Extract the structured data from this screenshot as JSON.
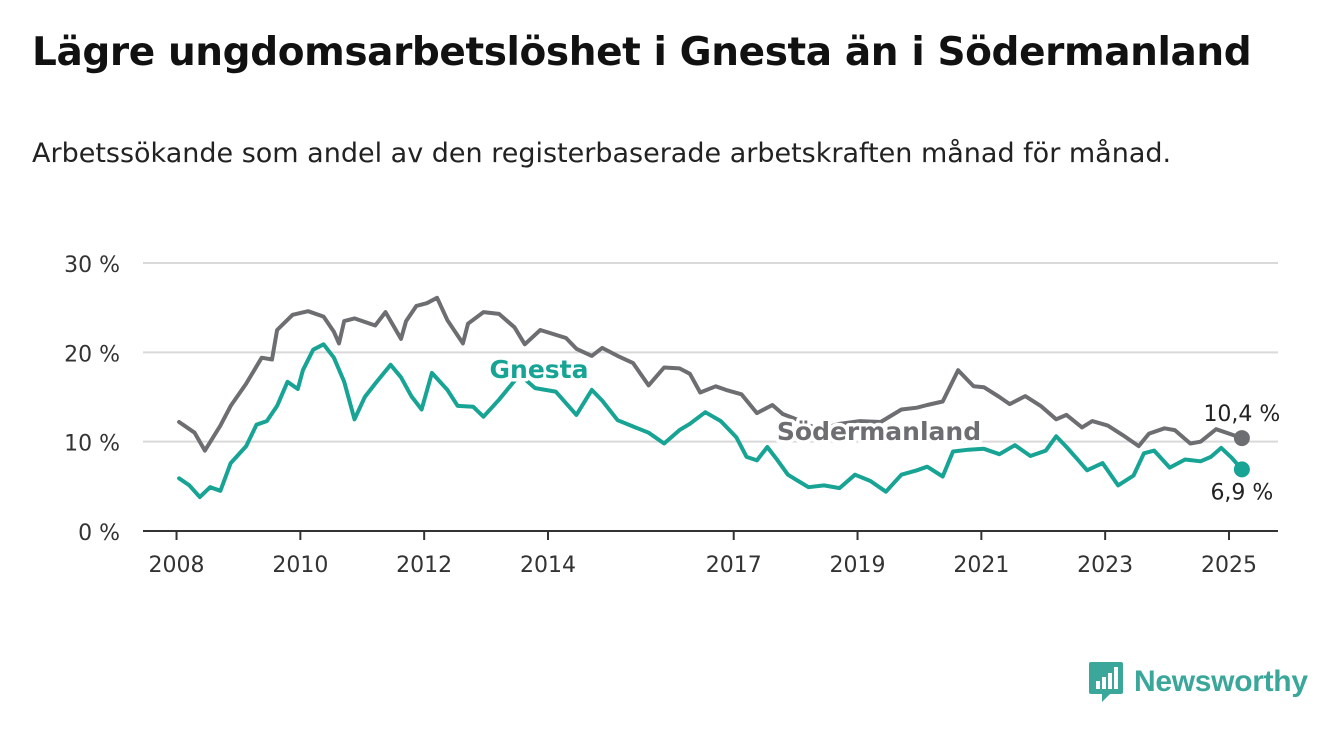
{
  "header": {
    "title": "Lägre ungdomsarbetslöshet i Gnesta än i Södermanland",
    "subtitle": "Arbetssökande som andel av den registerbaserade arbetskraften månad för månad."
  },
  "brand": {
    "name": "Newsworthy",
    "icon": "bar-chart-icon",
    "color": "#3aa79a"
  },
  "chart_data": {
    "type": "line",
    "title": "Lägre ungdomsarbetslöshet i Gnesta än i Södermanland",
    "subtitle": "Arbetssökande som andel av den registerbaserade arbetskraften månad för månad.",
    "xlabel": "",
    "ylabel": "",
    "x_tick_labels": [
      "2008",
      "2010",
      "2012",
      "2014",
      "2017",
      "2019",
      "2021",
      "2023",
      "2025"
    ],
    "y_tick_labels": [
      "0 %",
      "10 %",
      "20 %",
      "30 %"
    ],
    "y_ticks": [
      0,
      10,
      20,
      30
    ],
    "ylim": [
      0,
      30
    ],
    "xlim": [
      "2007-06",
      "2025-10"
    ],
    "grid": true,
    "legend": "inline labels",
    "series": [
      {
        "name": "Södermanland",
        "color": "#6d6e71",
        "end_label": "10,4 %",
        "points": [
          [
            "2008-01",
            12.2
          ],
          [
            "2008-04",
            11.0
          ],
          [
            "2008-06",
            9.0
          ],
          [
            "2008-09",
            11.8
          ],
          [
            "2008-11",
            14.0
          ],
          [
            "2009-02",
            16.5
          ],
          [
            "2009-05",
            19.4
          ],
          [
            "2009-07",
            19.2
          ],
          [
            "2009-08",
            22.5
          ],
          [
            "2009-11",
            24.2
          ],
          [
            "2010-02",
            24.6
          ],
          [
            "2010-05",
            24.0
          ],
          [
            "2010-07",
            22.3
          ],
          [
            "2010-08",
            21.0
          ],
          [
            "2010-09",
            23.5
          ],
          [
            "2010-11",
            23.8
          ],
          [
            "2011-03",
            23.0
          ],
          [
            "2011-05",
            24.5
          ],
          [
            "2011-08",
            21.5
          ],
          [
            "2011-09",
            23.5
          ],
          [
            "2011-11",
            25.2
          ],
          [
            "2012-01",
            25.5
          ],
          [
            "2012-03",
            26.1
          ],
          [
            "2012-05",
            23.6
          ],
          [
            "2012-08",
            21.0
          ],
          [
            "2012-09",
            23.2
          ],
          [
            "2012-12",
            24.5
          ],
          [
            "2013-03",
            24.3
          ],
          [
            "2013-06",
            22.8
          ],
          [
            "2013-08",
            20.9
          ],
          [
            "2013-11",
            22.5
          ],
          [
            "2014-04",
            21.6
          ],
          [
            "2014-06",
            20.4
          ],
          [
            "2014-09",
            19.6
          ],
          [
            "2014-11",
            20.5
          ],
          [
            "2015-02",
            19.6
          ],
          [
            "2015-05",
            18.8
          ],
          [
            "2015-08",
            16.3
          ],
          [
            "2015-11",
            18.3
          ],
          [
            "2016-02",
            18.2
          ],
          [
            "2016-04",
            17.6
          ],
          [
            "2016-06",
            15.5
          ],
          [
            "2016-09",
            16.2
          ],
          [
            "2016-11",
            15.8
          ],
          [
            "2017-02",
            15.3
          ],
          [
            "2017-05",
            13.2
          ],
          [
            "2017-08",
            14.1
          ],
          [
            "2017-10",
            13.1
          ],
          [
            "2018-02",
            12.2
          ],
          [
            "2018-05",
            11.3
          ],
          [
            "2018-09",
            12.0
          ],
          [
            "2019-01",
            12.3
          ],
          [
            "2019-05",
            12.2
          ],
          [
            "2019-09",
            13.6
          ],
          [
            "2019-12",
            13.8
          ],
          [
            "2020-02",
            14.1
          ],
          [
            "2020-05",
            14.5
          ],
          [
            "2020-08",
            18.0
          ],
          [
            "2020-11",
            16.2
          ],
          [
            "2021-01",
            16.1
          ],
          [
            "2021-04",
            15.0
          ],
          [
            "2021-06",
            14.2
          ],
          [
            "2021-09",
            15.1
          ],
          [
            "2021-12",
            14.0
          ],
          [
            "2022-03",
            12.5
          ],
          [
            "2022-05",
            13.0
          ],
          [
            "2022-08",
            11.6
          ],
          [
            "2022-10",
            12.3
          ],
          [
            "2023-01",
            11.8
          ],
          [
            "2023-04",
            10.7
          ],
          [
            "2023-07",
            9.5
          ],
          [
            "2023-09",
            10.9
          ],
          [
            "2023-12",
            11.5
          ],
          [
            "2024-02",
            11.3
          ],
          [
            "2024-05",
            9.8
          ],
          [
            "2024-07",
            10.0
          ],
          [
            "2024-10",
            11.4
          ],
          [
            "2025-01",
            10.8
          ],
          [
            "2025-03",
            10.4
          ]
        ]
      },
      {
        "name": "Gnesta",
        "color": "#17a495",
        "end_label": "6,9 %",
        "points": [
          [
            "2008-01",
            5.9
          ],
          [
            "2008-03",
            5.1
          ],
          [
            "2008-05",
            3.8
          ],
          [
            "2008-07",
            4.9
          ],
          [
            "2008-09",
            4.5
          ],
          [
            "2008-11",
            7.6
          ],
          [
            "2009-02",
            9.5
          ],
          [
            "2009-04",
            11.9
          ],
          [
            "2009-06",
            12.3
          ],
          [
            "2009-08",
            14.0
          ],
          [
            "2009-10",
            16.7
          ],
          [
            "2009-12",
            15.9
          ],
          [
            "2010-01",
            18.0
          ],
          [
            "2010-03",
            20.3
          ],
          [
            "2010-05",
            20.9
          ],
          [
            "2010-07",
            19.4
          ],
          [
            "2010-09",
            16.7
          ],
          [
            "2010-11",
            12.5
          ],
          [
            "2011-01",
            15.0
          ],
          [
            "2011-03",
            16.5
          ],
          [
            "2011-06",
            18.6
          ],
          [
            "2011-08",
            17.2
          ],
          [
            "2011-10",
            15.1
          ],
          [
            "2011-12",
            13.6
          ],
          [
            "2012-02",
            17.7
          ],
          [
            "2012-05",
            15.8
          ],
          [
            "2012-07",
            14.0
          ],
          [
            "2012-10",
            13.9
          ],
          [
            "2012-12",
            12.8
          ],
          [
            "2013-03",
            14.7
          ],
          [
            "2013-07",
            17.5
          ],
          [
            "2013-10",
            16.0
          ],
          [
            "2014-02",
            15.6
          ],
          [
            "2014-06",
            13.0
          ],
          [
            "2014-09",
            15.8
          ],
          [
            "2014-11",
            14.6
          ],
          [
            "2015-02",
            12.4
          ],
          [
            "2015-05",
            11.7
          ],
          [
            "2015-08",
            11.0
          ],
          [
            "2015-11",
            9.8
          ],
          [
            "2016-02",
            11.3
          ],
          [
            "2016-04",
            12.0
          ],
          [
            "2016-07",
            13.3
          ],
          [
            "2016-10",
            12.3
          ],
          [
            "2017-01",
            10.5
          ],
          [
            "2017-03",
            8.3
          ],
          [
            "2017-05",
            7.9
          ],
          [
            "2017-07",
            9.4
          ],
          [
            "2017-09",
            7.9
          ],
          [
            "2017-11",
            6.3
          ],
          [
            "2018-01",
            5.6
          ],
          [
            "2018-03",
            4.9
          ],
          [
            "2018-06",
            5.1
          ],
          [
            "2018-09",
            4.8
          ],
          [
            "2018-12",
            6.3
          ],
          [
            "2019-03",
            5.6
          ],
          [
            "2019-06",
            4.4
          ],
          [
            "2019-09",
            6.3
          ],
          [
            "2019-12",
            6.8
          ],
          [
            "2020-02",
            7.2
          ],
          [
            "2020-05",
            6.1
          ],
          [
            "2020-07",
            8.9
          ],
          [
            "2020-10",
            9.1
          ],
          [
            "2021-01",
            9.2
          ],
          [
            "2021-04",
            8.6
          ],
          [
            "2021-07",
            9.6
          ],
          [
            "2021-10",
            8.4
          ],
          [
            "2022-01",
            9.0
          ],
          [
            "2022-03",
            10.6
          ],
          [
            "2022-05",
            9.4
          ],
          [
            "2022-07",
            8.1
          ],
          [
            "2022-09",
            6.8
          ],
          [
            "2022-12",
            7.6
          ],
          [
            "2023-03",
            5.1
          ],
          [
            "2023-06",
            6.2
          ],
          [
            "2023-08",
            8.7
          ],
          [
            "2023-10",
            9.0
          ],
          [
            "2024-01",
            7.1
          ],
          [
            "2024-04",
            8.0
          ],
          [
            "2024-07",
            7.8
          ],
          [
            "2024-09",
            8.3
          ],
          [
            "2024-11",
            9.3
          ],
          [
            "2025-01",
            8.2
          ],
          [
            "2025-03",
            6.9
          ]
        ]
      }
    ]
  }
}
